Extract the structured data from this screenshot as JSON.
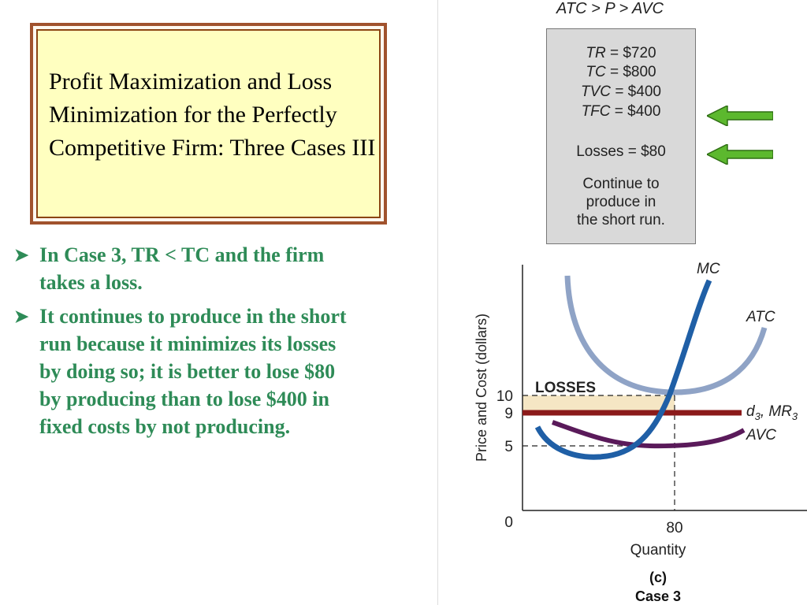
{
  "title": "Profit Maximization and Loss Minimization for the Perfectly Competitive Firm: Three Cases III",
  "bullets": [
    "In Case 3, TR <  TC and the firm takes a loss.",
    "It continues to produce in the short run because it minimizes its losses by doing so; it is better to lose $80 by producing than to lose $400 in fixed costs by not producing."
  ],
  "header_inequality": {
    "atc": "ATC",
    "gt1": "> P >",
    "avc": "AVC"
  },
  "infobox": {
    "tr_label": "TR",
    "tr_value": "= $720",
    "tc_label": "TC",
    "tc_value": "= $800",
    "tvc_label": "TVC",
    "tvc_value": "= $400",
    "tfc_label": "TFC",
    "tfc_value": "= $400",
    "losses": "Losses = $80",
    "note_line1": "Continue to",
    "note_line2": "produce in",
    "note_line3": "the short run."
  },
  "colors": {
    "bullet_text": "#2e8b57",
    "arrow": "#5cb82e",
    "mc": "#1f5fa6",
    "atc": "#8fa3c6",
    "avc": "#5a1a5a",
    "demand": "#8b1a1a",
    "losses_fill": "#f5e6c4"
  },
  "chart_data": {
    "type": "line",
    "ylabel": "Price and Cost (dollars)",
    "xlabel": "Quantity",
    "panel_label": "(c)",
    "case_label": "Case 3",
    "origin_label": "0",
    "y_ticks": [
      "10",
      "9",
      "5"
    ],
    "x_ticks": [
      "80"
    ],
    "losses_label": "LOSSES",
    "price": 9,
    "atc_at_q": 10,
    "avc_at_q": 5,
    "quantity": 80,
    "series_labels": {
      "mc": "MC",
      "atc": "ATC",
      "demand_d": "d",
      "demand_sub1": "3",
      "demand_sep": ", MR",
      "demand_sub2": "3",
      "avc": "AVC"
    }
  }
}
